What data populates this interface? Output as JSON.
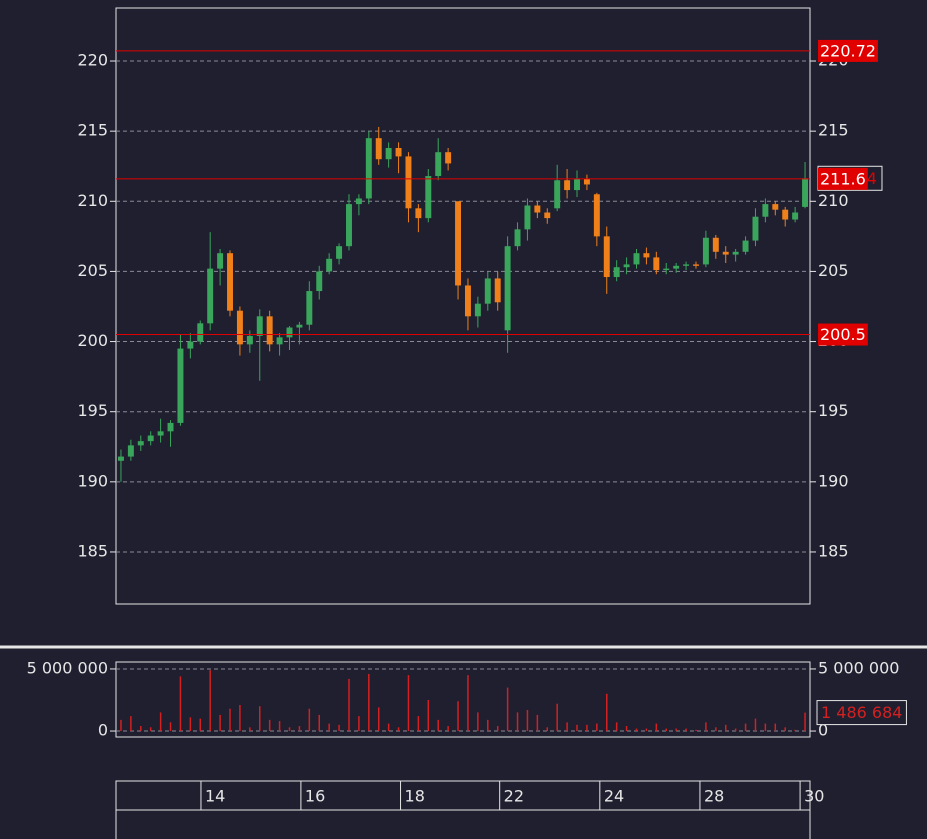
{
  "chart_data": [
    {
      "type": "candlestick",
      "categories": [
        null,
        null,
        null,
        null,
        null,
        null,
        null,
        null,
        null,
        null,
        null,
        null,
        null,
        null,
        null,
        null,
        null,
        null,
        null,
        null,
        null,
        null,
        null,
        null,
        null,
        null,
        null,
        null,
        null,
        null,
        null,
        null,
        null,
        null,
        null,
        null,
        null,
        null,
        null,
        null,
        null,
        null,
        null,
        null,
        null,
        null,
        null,
        null,
        null,
        null,
        null,
        null,
        null,
        null,
        null,
        null,
        null,
        null,
        null,
        null,
        null,
        null,
        null,
        null,
        null,
        null,
        null,
        null,
        null,
        null
      ],
      "open": [
        191.5,
        191.8,
        192.6,
        192.9,
        193.3,
        193.6,
        194.2,
        199.5,
        200,
        201.3,
        205.2,
        206.3,
        202.2,
        199.8,
        200.4,
        201.8,
        199.8,
        200.3,
        201,
        201.2,
        203.6,
        205,
        205.9,
        206.8,
        209.8,
        210.2,
        214.5,
        213,
        213.8,
        213.2,
        209.5,
        208.8,
        211.8,
        213.5,
        210,
        204,
        201.8,
        202.7,
        204.5,
        200.8,
        206.8,
        208,
        209.7,
        209.2,
        209.5,
        211.5,
        210.8,
        211.6,
        210.5,
        207.5,
        204.6,
        205.3,
        205.5,
        206.3,
        206,
        205.1,
        205.2,
        205.4,
        205.5,
        205.5,
        207.4,
        206.4,
        206.2,
        206.4,
        207.2,
        208.9,
        209.8,
        209.4,
        208.7,
        209.6
      ],
      "high": [
        192.3,
        193,
        193.3,
        193.6,
        194.5,
        194.4,
        200.5,
        200.6,
        201.5,
        207.8,
        206.6,
        206.5,
        202.5,
        200.8,
        202.3,
        202.2,
        200.6,
        201.1,
        201.4,
        204.3,
        205.4,
        206.3,
        207,
        210.5,
        210.5,
        215,
        215.3,
        214.2,
        214.2,
        213.5,
        209.8,
        212.3,
        214.5,
        213.8,
        210,
        204.5,
        203.2,
        205,
        205,
        207.5,
        208.5,
        210.2,
        210,
        209.5,
        212.6,
        212.3,
        212.2,
        211.9,
        210.6,
        208.2,
        205.8,
        206,
        206.6,
        206.7,
        206.4,
        205.6,
        205.6,
        205.7,
        205.7,
        207.9,
        207.6,
        206.8,
        206.6,
        207.5,
        209.5,
        210.2,
        210,
        209.6,
        209.6,
        212.8
      ],
      "low": [
        190,
        191.5,
        192.2,
        192.6,
        192.8,
        192.5,
        194,
        198.8,
        199.8,
        200.8,
        204,
        201.8,
        199,
        199.2,
        197.2,
        199.3,
        199,
        199.4,
        199.8,
        200.8,
        203,
        204.8,
        205.5,
        206.5,
        209,
        209.8,
        212.6,
        212.4,
        212,
        208.5,
        207.8,
        208.5,
        211.5,
        212.2,
        203,
        200.8,
        201,
        202.2,
        202.2,
        199.2,
        206.5,
        207.2,
        208.8,
        208.4,
        209.3,
        210.2,
        210.3,
        210.8,
        206.8,
        203.4,
        204.3,
        204.8,
        205.2,
        205.5,
        204.8,
        204.8,
        204.9,
        205.1,
        205.2,
        205.3,
        205.9,
        205.6,
        205.7,
        206.2,
        206.8,
        208.5,
        209,
        208.2,
        208.5,
        209.5
      ],
      "close": [
        191.8,
        192.6,
        192.9,
        193.3,
        193.6,
        194.2,
        199.5,
        200,
        201.3,
        205.2,
        206.3,
        202.2,
        199.8,
        200.4,
        201.8,
        199.8,
        200.3,
        201,
        201.2,
        203.6,
        205,
        205.9,
        206.8,
        209.8,
        210.2,
        214.5,
        213,
        213.8,
        213.2,
        209.5,
        208.8,
        211.8,
        213.5,
        212.7,
        204,
        201.8,
        202.7,
        204.5,
        202.8,
        206.8,
        208,
        209.7,
        209.2,
        208.8,
        211.5,
        210.8,
        211.6,
        211.2,
        207.5,
        204.6,
        205.3,
        205.5,
        206.3,
        206,
        205.1,
        205.2,
        205.4,
        205.5,
        205.4,
        207.4,
        206.4,
        206.2,
        206.4,
        207.2,
        208.9,
        209.8,
        209.4,
        208.7,
        209.2,
        211.64
      ],
      "up_color": "#3aa65c",
      "down_color": "#f0801a",
      "ylim": [
        181.29,
        223.78
      ],
      "yticks": [
        185,
        190,
        195,
        200,
        205,
        210,
        215,
        220
      ],
      "grid": true,
      "xlim": [
        -0.5,
        69.5
      ],
      "xticks": [
        {
          "value": 8.07,
          "label": "14"
        },
        {
          "value": 18.15,
          "label": "16"
        },
        {
          "value": 28.2,
          "label": "18"
        },
        {
          "value": 38.2,
          "label": "22"
        },
        {
          "value": 48.3,
          "label": "24"
        },
        {
          "value": 58.4,
          "label": "28"
        },
        {
          "value": 68.5,
          "label": "30"
        }
      ],
      "levels": [
        220.72,
        211.6,
        200.5
      ],
      "level_color": "#e00000",
      "last_price": "211.64"
    },
    {
      "type": "bar",
      "values": [
        900000,
        1200000,
        400000,
        300000,
        1500000,
        700000,
        4400000,
        1100000,
        1000000,
        4900000,
        1300000,
        1800000,
        2100000,
        300000,
        2000000,
        900000,
        800000,
        300000,
        400000,
        1800000,
        1300000,
        600000,
        500000,
        4200000,
        1200000,
        4600000,
        1900000,
        600000,
        300000,
        4500000,
        1200000,
        2500000,
        900000,
        400000,
        2400000,
        4500000,
        1500000,
        900000,
        400000,
        3500000,
        1500000,
        1700000,
        1300000,
        300000,
        2200000,
        700000,
        500000,
        500000,
        600000,
        3000000,
        700000,
        400000,
        200000,
        200000,
        600000,
        200000,
        200000,
        200000,
        100000,
        700000,
        300000,
        500000,
        200000,
        600000,
        1000000,
        600000,
        600000,
        300000,
        100000,
        1486684
      ],
      "value_labels": [
        null,
        null,
        null,
        null,
        null,
        null,
        null,
        null,
        null,
        null,
        null,
        null,
        null,
        null,
        null,
        null,
        null,
        null,
        null,
        null,
        null,
        null,
        null,
        null,
        null,
        null,
        null,
        null,
        null,
        null,
        null,
        null,
        null,
        null,
        null,
        null,
        null,
        null,
        null,
        null,
        null,
        null,
        null,
        null,
        null,
        null,
        null,
        null,
        null,
        null,
        null,
        null,
        null,
        null,
        null,
        null,
        null,
        null,
        null,
        null,
        null,
        null,
        null,
        null,
        null,
        null,
        null,
        null,
        null,
        "1 486 684"
      ],
      "color": "#d42020",
      "ylim": [
        -480000,
        5560000
      ],
      "yticks": [
        0,
        {
          "value": 5000000,
          "label": "5 000 000"
        }
      ],
      "grid": true
    }
  ]
}
